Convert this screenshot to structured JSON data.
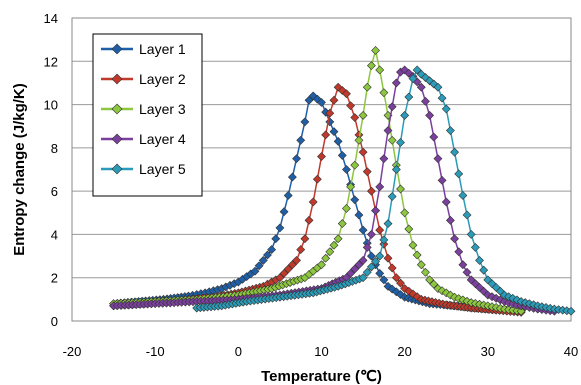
{
  "chart_data": {
    "type": "scatter",
    "title": "",
    "xlabel": "Temperature (℃)",
    "ylabel": "Entropy change (J/kg/K)",
    "xlim": [
      -20,
      40
    ],
    "ylim": [
      0,
      14
    ],
    "x_ticks": [
      "-20",
      "-10",
      "0",
      "10",
      "20",
      "30",
      "40"
    ],
    "y_ticks": [
      "0",
      "2",
      "4",
      "6",
      "8",
      "10",
      "12",
      "14"
    ],
    "grid": "horizontal",
    "legend_position": "top-left",
    "series": [
      {
        "name": "Layer 1",
        "color": "#1f5fa8",
        "marker": "diamond",
        "x": [
          -15,
          -12,
          -9,
          -6,
          -4,
          -2,
          0,
          2,
          4,
          5,
          6,
          7,
          8,
          8.5,
          9,
          10,
          11,
          12,
          13,
          14,
          15,
          16,
          17,
          18,
          20,
          23,
          26,
          30,
          34
        ],
        "y": [
          0.8,
          0.9,
          1.0,
          1.15,
          1.3,
          1.5,
          1.8,
          2.3,
          3.3,
          4.3,
          5.8,
          7.5,
          9.2,
          10.2,
          10.4,
          10.1,
          9.2,
          8.3,
          7.0,
          5.6,
          4.2,
          3.0,
          2.2,
          1.6,
          1.1,
          0.8,
          0.7,
          0.55,
          0.45
        ]
      },
      {
        "name": "Layer 2",
        "color": "#c0392b",
        "marker": "diamond",
        "x": [
          -15,
          -12,
          -9,
          -6,
          -3,
          0,
          3,
          5,
          7,
          8,
          9,
          10,
          11,
          12,
          13,
          14,
          15,
          16,
          17,
          18,
          19,
          20,
          22,
          25,
          28,
          31,
          34
        ],
        "y": [
          0.7,
          0.8,
          0.9,
          1.0,
          1.1,
          1.3,
          1.6,
          2.0,
          2.8,
          3.8,
          5.5,
          7.6,
          9.6,
          10.8,
          10.5,
          9.4,
          7.8,
          6.0,
          4.2,
          2.9,
          2.0,
          1.5,
          1.0,
          0.75,
          0.6,
          0.5,
          0.4
        ]
      },
      {
        "name": "Layer 3",
        "color": "#8dc63f",
        "marker": "diamond",
        "x": [
          -15,
          -10,
          -5,
          0,
          4,
          8,
          10,
          12,
          13,
          14,
          15,
          15.5,
          16,
          16.5,
          17,
          18,
          19,
          20,
          21,
          22,
          23,
          24,
          26,
          28,
          30,
          32,
          34
        ],
        "y": [
          0.8,
          0.9,
          1.0,
          1.2,
          1.5,
          2.0,
          2.6,
          3.8,
          5.2,
          7.2,
          9.5,
          10.8,
          11.8,
          12.5,
          11.6,
          9.5,
          7.2,
          5.0,
          3.5,
          2.6,
          1.9,
          1.5,
          1.1,
          0.85,
          0.7,
          0.55,
          0.45
        ]
      },
      {
        "name": "Layer 4",
        "color": "#7b3f9e",
        "marker": "diamond",
        "x": [
          -15,
          -10,
          -5,
          0,
          5,
          10,
          13,
          15,
          16,
          17,
          18,
          19,
          19.5,
          20,
          21,
          22,
          23,
          24,
          25,
          26,
          27,
          28,
          30,
          32,
          34,
          36,
          38
        ],
        "y": [
          0.7,
          0.8,
          0.9,
          1.0,
          1.2,
          1.5,
          2.0,
          2.8,
          4.0,
          6.2,
          8.8,
          11.0,
          11.5,
          11.6,
          11.3,
          10.8,
          9.5,
          7.5,
          5.5,
          3.8,
          2.6,
          1.9,
          1.2,
          0.9,
          0.7,
          0.55,
          0.45
        ]
      },
      {
        "name": "Layer 5",
        "color": "#2a9bb8",
        "marker": "diamond",
        "x": [
          -5,
          -2,
          1,
          5,
          9,
          12,
          15,
          17,
          18,
          19,
          20,
          21,
          21.5,
          22,
          23,
          24,
          25,
          26,
          27,
          28,
          29,
          30,
          32,
          34,
          36,
          38,
          40
        ],
        "y": [
          0.6,
          0.7,
          0.9,
          1.1,
          1.3,
          1.6,
          2.0,
          3.0,
          4.5,
          7.0,
          9.5,
          11.2,
          11.6,
          11.4,
          11.1,
          10.8,
          9.8,
          7.8,
          5.8,
          4.0,
          2.8,
          1.9,
          1.2,
          0.9,
          0.7,
          0.55,
          0.45
        ]
      }
    ]
  }
}
